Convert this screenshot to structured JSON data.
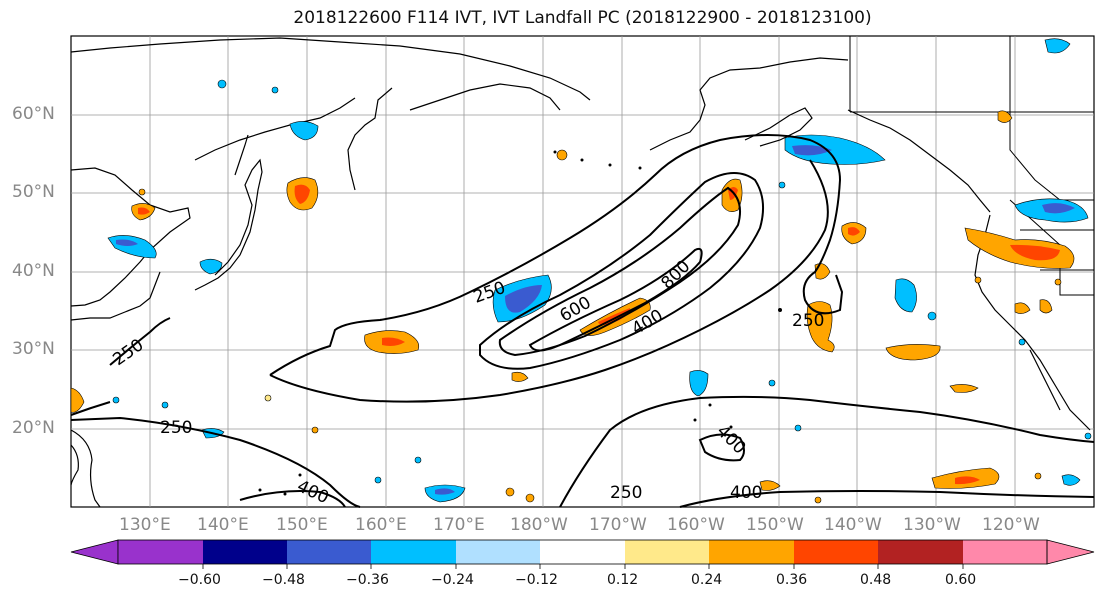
{
  "title": "2018122600 F114 IVT, IVT Landfall PC (2018122900 - 2018123100)",
  "lat_labels": [
    "60°N",
    "50°N",
    "40°N",
    "30°N",
    "20°N"
  ],
  "lon_labels": [
    "130°E",
    "140°E",
    "150°E",
    "160°E",
    "170°E",
    "180°W",
    "170°W",
    "160°W",
    "150°W",
    "140°W",
    "130°W",
    "120°W"
  ],
  "contour_labels": [
    "250",
    "600",
    "800",
    "400",
    "250",
    "250",
    "250",
    "400",
    "400",
    "250",
    "400"
  ],
  "colorbar": {
    "ticks": [
      "−0.60",
      "−0.48",
      "−0.36",
      "−0.24",
      "−0.12",
      "0.12",
      "0.24",
      "0.36",
      "0.48",
      "0.60"
    ],
    "colors": [
      "#9932CC",
      "#00008B",
      "#3A5BD0",
      "#00BFFF",
      "#B0E0FF",
      "#FFFFFF",
      "#FFE98A",
      "#FFA500",
      "#FF4500",
      "#B22222",
      "#FF88AA"
    ]
  },
  "colors": {
    "positive_fill": "#FFA500",
    "positive_core": "#FF4500",
    "negative_fill": "#00BFFF",
    "negative_core": "#3A5BD0",
    "grid": "#999999",
    "contour": "#000000"
  }
}
